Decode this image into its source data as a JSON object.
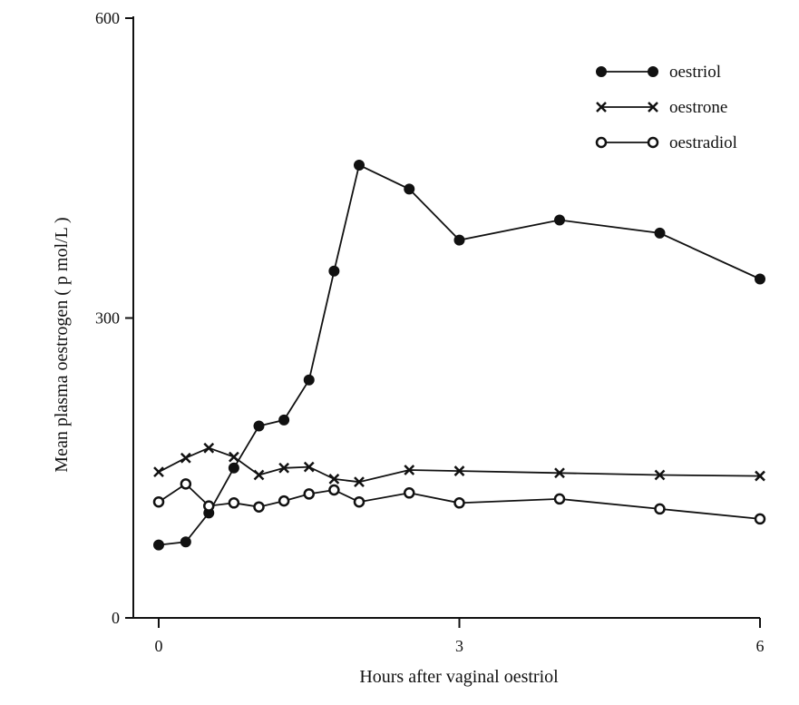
{
  "chart_data": {
    "type": "line",
    "title": "",
    "xlabel": "Hours after vaginal oestriol",
    "ylabel": "Mean plasma oestrogen  ( p mol/L )",
    "xlim": [
      0,
      6
    ],
    "ylim": [
      0,
      600
    ],
    "x_ticks": [
      0,
      3,
      6
    ],
    "y_ticks": [
      0,
      300,
      600
    ],
    "grid": false,
    "legend_position": "top-right",
    "series": [
      {
        "name": "oestriol",
        "marker": "filled-circle",
        "x": [
          0,
          0.27,
          0.5,
          0.75,
          1.0,
          1.25,
          1.5,
          1.75,
          2.0,
          2.5,
          3.0,
          4.0,
          5.0,
          6.0
        ],
        "y": [
          73,
          76,
          105,
          150,
          192,
          198,
          238,
          347,
          453,
          429,
          378,
          398,
          385,
          339
        ]
      },
      {
        "name": "oestrone",
        "marker": "cross",
        "x": [
          0,
          0.27,
          0.5,
          0.75,
          1.0,
          1.25,
          1.5,
          1.75,
          2.0,
          2.5,
          3.0,
          4.0,
          5.0,
          6.0
        ],
        "y": [
          146,
          160,
          170,
          161,
          143,
          150,
          151,
          139,
          136,
          148,
          147,
          145,
          143,
          142
        ]
      },
      {
        "name": "oestradiol",
        "marker": "open-circle",
        "x": [
          0,
          0.27,
          0.5,
          0.75,
          1.0,
          1.25,
          1.5,
          1.75,
          2.0,
          2.5,
          3.0,
          4.0,
          5.0,
          6.0
        ],
        "y": [
          116,
          134,
          112,
          115,
          111,
          117,
          124,
          128,
          116,
          125,
          115,
          119,
          109,
          99
        ]
      }
    ]
  }
}
